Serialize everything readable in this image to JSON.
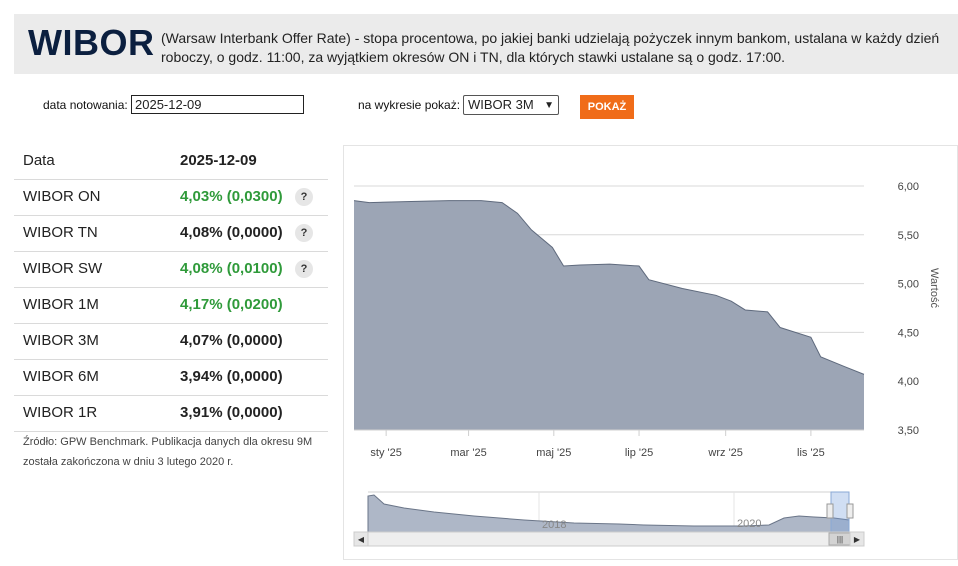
{
  "header": {
    "logo": "WIBOR",
    "description": "(Warsaw Interbank Offer Rate) - stopa procentowa, po jakiej banki udzielają pożyczek innym bankom, ustalana w każdy dzień roboczy, o godz. 11:00, za wyjątkiem okresów ON i TN, dla których stawki ustalane są o godz. 17:00."
  },
  "controls": {
    "date_label": "data notowania:",
    "date_value": "2025-12-09",
    "chart_label": "na wykresie pokaż:",
    "select_value": "WIBOR 3M",
    "button_label": "POKAŻ"
  },
  "table": {
    "header": {
      "name": "Data",
      "value": "2025-12-09"
    },
    "rows": [
      {
        "name": "WIBOR ON",
        "value": "4,03% (0,0300)",
        "green": true,
        "help": "?"
      },
      {
        "name": "WIBOR TN",
        "value": "4,08% (0,0000)",
        "green": false,
        "help": "?"
      },
      {
        "name": "WIBOR SW",
        "value": "4,08% (0,0100)",
        "green": true,
        "help": "?"
      },
      {
        "name": "WIBOR 1M",
        "value": "4,17% (0,0200)",
        "green": true,
        "help": ""
      },
      {
        "name": "WIBOR 3M",
        "value": "4,07% (0,0000)",
        "green": false,
        "help": ""
      },
      {
        "name": "WIBOR 6M",
        "value": "3,94% (0,0000)",
        "green": false,
        "help": ""
      },
      {
        "name": "WIBOR 1R",
        "value": "3,91% (0,0000)",
        "green": false,
        "help": ""
      }
    ]
  },
  "source": "Źródło: GPW Benchmark. Publikacja danych dla okresu 9M została zakończona w dniu 3 lutego 2020 r.",
  "chart_data": {
    "type": "area",
    "ylabel": "Wartość",
    "ylim": [
      3.5,
      6.0
    ],
    "y_ticks": [
      "6,00",
      "5,50",
      "5,00",
      "4,50",
      "4,00",
      "3,50"
    ],
    "x_ticks": [
      "sty '25",
      "mar '25",
      "maj '25",
      "lip '25",
      "wrz '25",
      "lis '25"
    ],
    "series": [
      {
        "values": [
          {
            "x": "2024-12-09",
            "y": 5.85
          },
          {
            "x": "2024-12-20",
            "y": 5.83
          },
          {
            "x": "2025-01-15",
            "y": 5.84
          },
          {
            "x": "2025-02-15",
            "y": 5.85
          },
          {
            "x": "2025-03-10",
            "y": 5.85
          },
          {
            "x": "2025-03-25",
            "y": 5.83
          },
          {
            "x": "2025-04-05",
            "y": 5.72
          },
          {
            "x": "2025-04-15",
            "y": 5.55
          },
          {
            "x": "2025-04-30",
            "y": 5.37
          },
          {
            "x": "2025-05-08",
            "y": 5.18
          },
          {
            "x": "2025-05-20",
            "y": 5.19
          },
          {
            "x": "2025-06-10",
            "y": 5.2
          },
          {
            "x": "2025-07-01",
            "y": 5.18
          },
          {
            "x": "2025-07-08",
            "y": 5.04
          },
          {
            "x": "2025-08-01",
            "y": 4.95
          },
          {
            "x": "2025-08-25",
            "y": 4.88
          },
          {
            "x": "2025-09-05",
            "y": 4.82
          },
          {
            "x": "2025-09-15",
            "y": 4.73
          },
          {
            "x": "2025-10-01",
            "y": 4.71
          },
          {
            "x": "2025-10-10",
            "y": 4.55
          },
          {
            "x": "2025-11-01",
            "y": 4.45
          },
          {
            "x": "2025-11-08",
            "y": 4.25
          },
          {
            "x": "2025-11-25",
            "y": 4.15
          },
          {
            "x": "2025-12-09",
            "y": 4.07
          }
        ]
      }
    ],
    "navigator": {
      "labels": [
        "2018",
        "2020"
      ]
    },
    "colors": {
      "fill": "#9ca5b5",
      "line": "#5f6a7d"
    }
  }
}
